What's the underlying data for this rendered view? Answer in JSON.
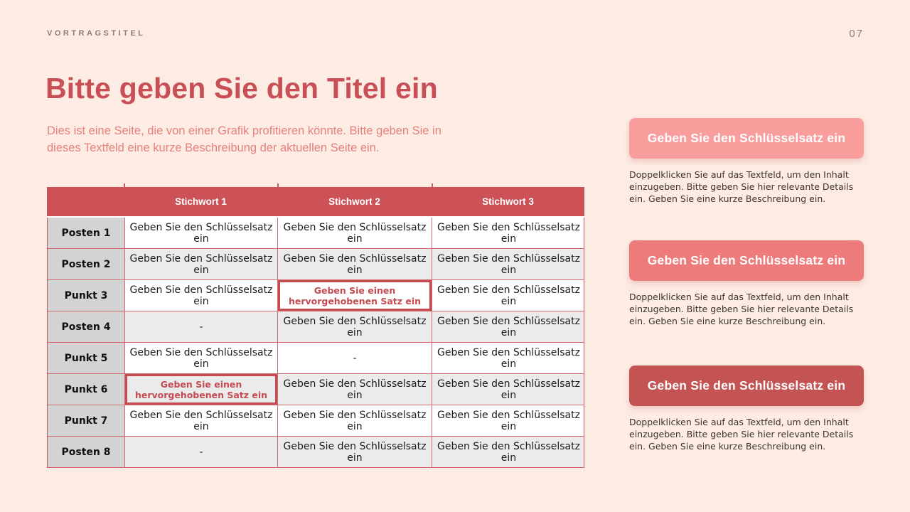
{
  "page": {
    "kicker": "VORTRAGSTITEL",
    "page_number": "07",
    "title": "Bitte geben Sie den Titel ein",
    "subtitle": "Dies ist eine Seite, die von einer Grafik profitieren könnte. Bitte geben Sie in dieses Textfeld eine kurze Beschreibung der aktuellen Seite ein."
  },
  "table": {
    "columns": [
      "Stichwort 1",
      "Stichwort 2",
      "Stichwort 3"
    ],
    "placeholder": "Geben Sie den Schlüsselsatz ein",
    "highlight_text": "Geben Sie einen hervorgehobenen Satz ein",
    "dash_text": "-",
    "rows": [
      {
        "label": "Posten 1",
        "cells": [
          "normal",
          "normal",
          "normal"
        ]
      },
      {
        "label": "Posten 2",
        "cells": [
          "normal",
          "normal",
          "normal"
        ]
      },
      {
        "label": "Punkt 3",
        "cells": [
          "normal",
          "highlight",
          "normal"
        ]
      },
      {
        "label": "Posten 4",
        "cells": [
          "dash",
          "normal",
          "normal"
        ]
      },
      {
        "label": "Punkt 5",
        "cells": [
          "normal",
          "dash",
          "normal"
        ]
      },
      {
        "label": "Punkt 6",
        "cells": [
          "highlight",
          "normal",
          "normal"
        ]
      },
      {
        "label": "Punkt 7",
        "cells": [
          "normal",
          "normal",
          "normal"
        ]
      },
      {
        "label": "Posten 8",
        "cells": [
          "dash",
          "normal",
          "normal"
        ]
      }
    ]
  },
  "sidebar": {
    "cards": [
      {
        "button_label": "Geben Sie den Schlüsselsatz ein",
        "color": "#f99d9d",
        "description": "Doppelklicken Sie auf das Textfeld, um den Inhalt einzugeben. Bitte geben Sie hier relevante Details ein. Geben Sie eine kurze Beschreibung ein."
      },
      {
        "button_label": "Geben Sie den Schlüsselsatz ein",
        "color": "#ee7b7b",
        "description": "Doppelklicken Sie auf das Textfeld, um den Inhalt einzugeben. Bitte geben Sie hier relevante Details ein. Geben Sie eine kurze Beschreibung ein."
      },
      {
        "button_label": "Geben Sie den Schlüsselsatz ein",
        "color": "#c45454",
        "description": "Doppelklicken Sie auf das Textfeld, um den Inhalt einzugeben. Bitte geben Sie hier relevante Details ein. Geben Sie eine kurze Beschreibung ein."
      }
    ]
  },
  "colors": {
    "background": "#fdece4",
    "title_red": "#c84f56",
    "subtitle_coral": "#e8807c",
    "table_header_bg": "#cd5257",
    "table_border": "#d4696d",
    "label_cell_bg": "#d3d3d3",
    "alt_row_bg": "#ebebeb",
    "highlight_red": "#c64a52",
    "kicker_gray": "#8e7e78"
  },
  "layout": {
    "card_tops": [
      166,
      338,
      514
    ],
    "tick_lefts": [
      108,
      324,
      541
    ]
  }
}
